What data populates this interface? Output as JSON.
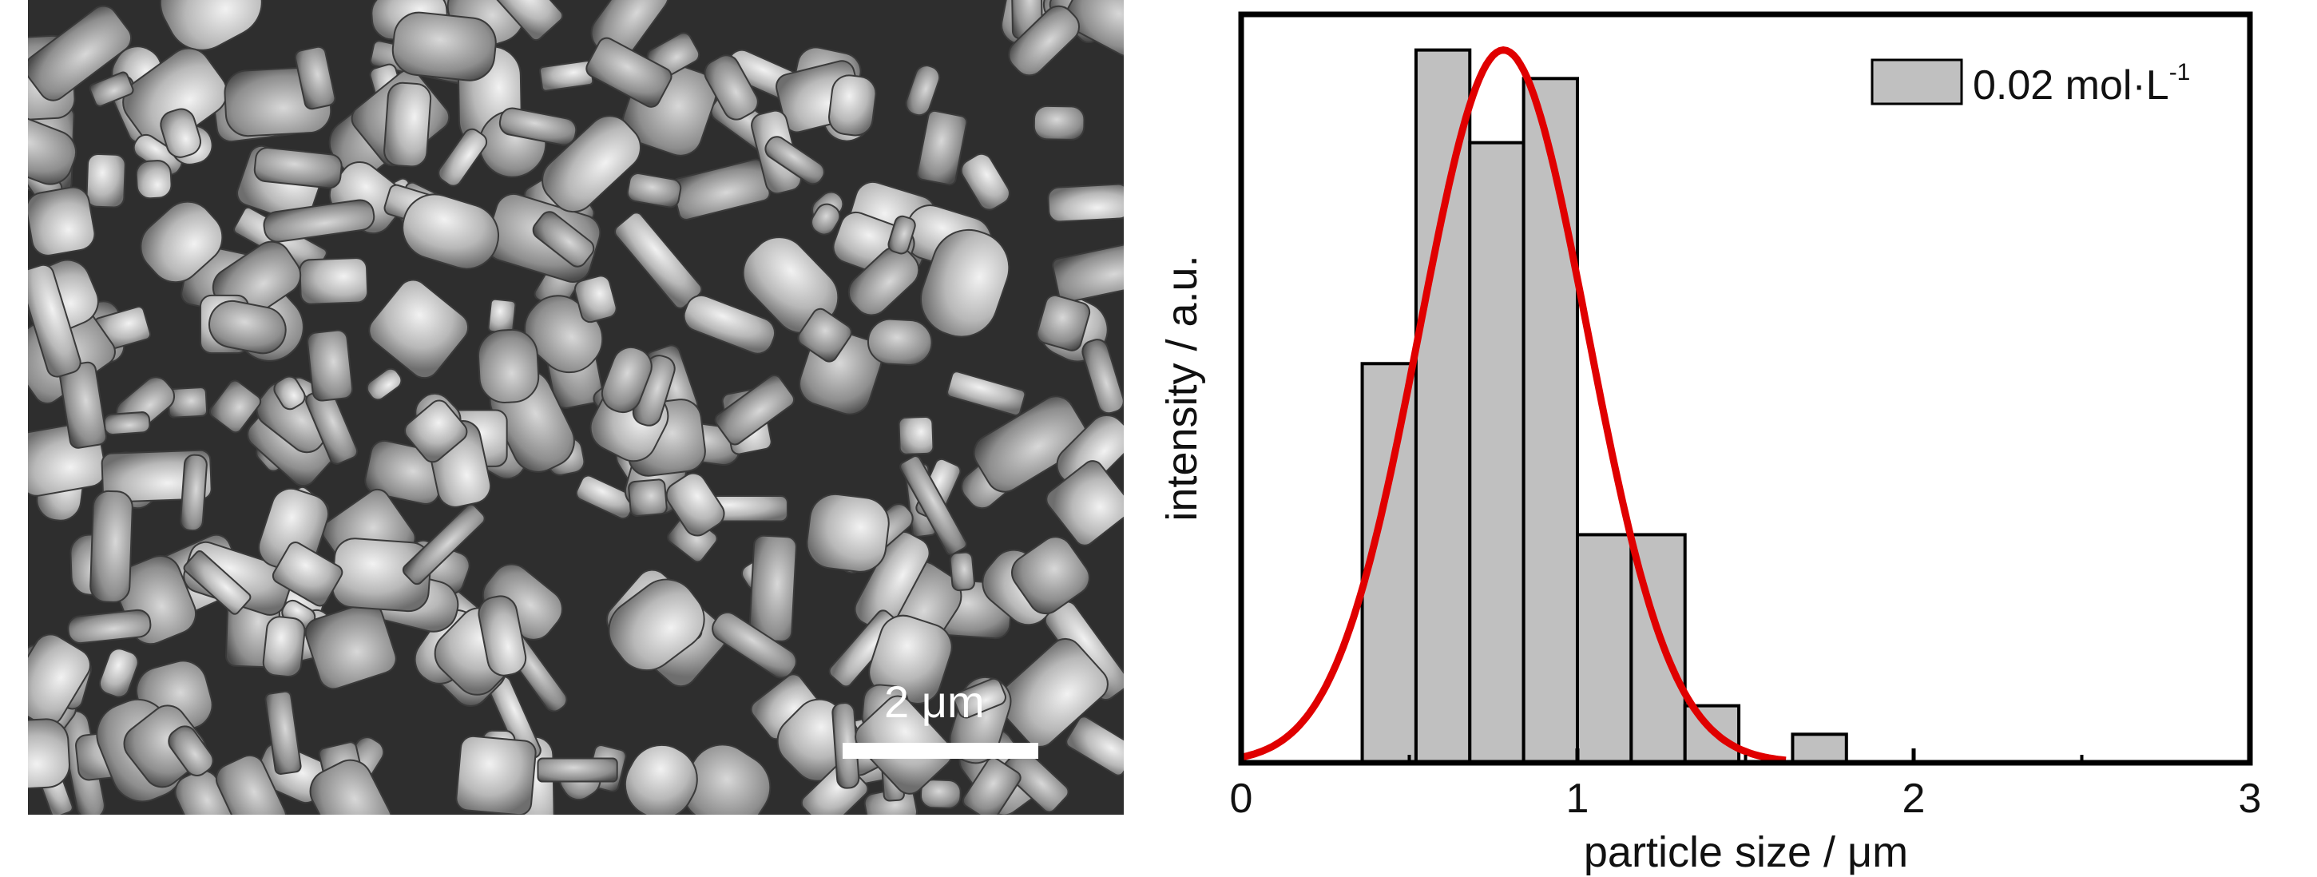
{
  "micrograph": {
    "scale_bar_label": "2 μm"
  },
  "chart_data": {
    "type": "bar",
    "xlabel": "particle size / μm",
    "ylabel": "intensity / a.u.",
    "xlim": [
      0,
      3
    ],
    "ylim": [
      0,
      1.05
    ],
    "x_ticks": [
      "0",
      "1",
      "2",
      "3"
    ],
    "y_ticks_shown": false,
    "legend": {
      "label": "0.02 mol·L",
      "superscript": "-1",
      "position": "top-right"
    },
    "series": [
      {
        "kind": "histogram",
        "bins": [
          {
            "x0": 0.36,
            "x1": 0.52,
            "value": 0.56
          },
          {
            "x0": 0.52,
            "x1": 0.68,
            "value": 1.0
          },
          {
            "x0": 0.68,
            "x1": 0.84,
            "value": 0.87
          },
          {
            "x0": 0.84,
            "x1": 1.0,
            "value": 0.96
          },
          {
            "x0": 1.0,
            "x1": 1.16,
            "value": 0.32
          },
          {
            "x0": 1.16,
            "x1": 1.32,
            "value": 0.32
          },
          {
            "x0": 1.32,
            "x1": 1.48,
            "value": 0.08
          },
          {
            "x0": 1.48,
            "x1": 1.64,
            "value": 0.0
          },
          {
            "x0": 1.64,
            "x1": 1.8,
            "value": 0.04
          }
        ]
      },
      {
        "kind": "gaussian-fit",
        "center": 0.78,
        "sigma": 0.25,
        "amplitude": 1.0,
        "x_range": [
          0.0,
          1.62
        ]
      }
    ],
    "colors": {
      "bar_fill": "#c0c0c0",
      "bar_edge": "#000000",
      "fit_line": "#e00000"
    }
  }
}
